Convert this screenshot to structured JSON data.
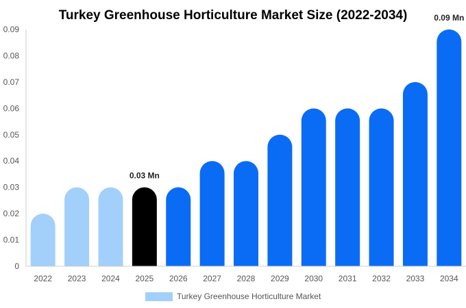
{
  "chart_data": {
    "type": "bar",
    "title": "Turkey Greenhouse Horticulture Market Size (2022-2034)",
    "categories": [
      "2022",
      "2023",
      "2024",
      "2025",
      "2026",
      "2027",
      "2028",
      "2029",
      "2030",
      "2031",
      "2032",
      "2033",
      "2034"
    ],
    "values": [
      0.02,
      0.03,
      0.03,
      0.03,
      0.03,
      0.04,
      0.04,
      0.05,
      0.06,
      0.06,
      0.06,
      0.07,
      0.09
    ],
    "ylim": [
      0,
      0.09
    ],
    "yticks": [
      0,
      0.01,
      0.02,
      0.03,
      0.04,
      0.05,
      0.06,
      0.07,
      0.08,
      0.09
    ],
    "ytick_labels": [
      "0",
      "0.01",
      "0.02",
      "0.03",
      "0.04",
      "0.05",
      "0.06",
      "0.07",
      "0.08",
      "0.09"
    ],
    "bar_colors": [
      "#a3d0fb",
      "#a3d0fb",
      "#a3d0fb",
      "#000000",
      "#0a6cf5",
      "#0a6cf5",
      "#0a6cf5",
      "#0a6cf5",
      "#0a6cf5",
      "#0a6cf5",
      "#0a6cf5",
      "#0a6cf5",
      "#0a6cf5"
    ],
    "annotations": [
      {
        "category": "2025",
        "text": "0.03 Mn"
      },
      {
        "category": "2034",
        "text": "0.09 Mn"
      }
    ],
    "legend": {
      "position": "bottom-center",
      "entries": [
        {
          "label": "Turkey Greenhouse Horticulture Market",
          "color": "#a3d0fb"
        }
      ]
    },
    "grid": false
  }
}
